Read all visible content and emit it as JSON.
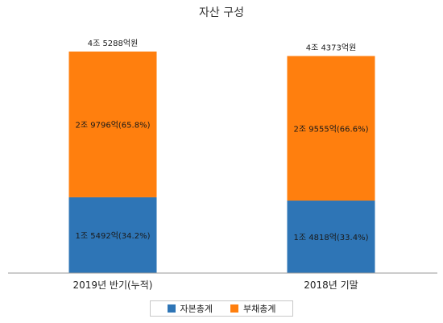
{
  "chart_data": {
    "type": "bar",
    "stacked": true,
    "title": "자산 구성",
    "categories": [
      "2019년 반기(누적)",
      "2018년 기말"
    ],
    "totals": [
      45288,
      44373
    ],
    "total_labels": [
      "4조 5288억원",
      "4조 4373억원"
    ],
    "series": [
      {
        "name": "자본총계",
        "color": "#2e75b6",
        "values": [
          15492,
          14818
        ],
        "labels": [
          "1조 5492억(34.2%)",
          "1조 4818억(33.4%)"
        ]
      },
      {
        "name": "부채총계",
        "color": "#ff7f0e",
        "values": [
          29796,
          29555
        ],
        "labels": [
          "2조 9796억(65.8%)",
          "2조 9555억(66.6%)"
        ]
      }
    ],
    "grid": false,
    "legend_position": "bottom"
  }
}
